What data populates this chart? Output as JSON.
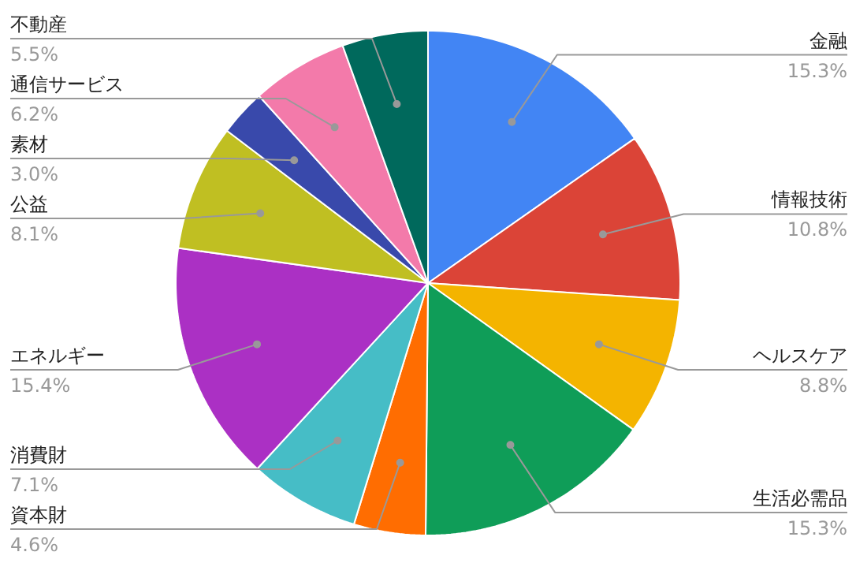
{
  "chart_data": {
    "type": "pie",
    "categories": [
      "金融",
      "情報技術",
      "ヘルスケア",
      "生活必需品",
      "資本財",
      "消費財",
      "エネルギー",
      "公益",
      "素材",
      "通信サービス",
      "不動産"
    ],
    "values": [
      15.3,
      10.8,
      8.8,
      15.3,
      4.6,
      7.1,
      15.4,
      8.1,
      3.0,
      6.2,
      5.5
    ],
    "value_labels": [
      "15.3%",
      "10.8%",
      "8.8%",
      "15.3%",
      "4.6%",
      "7.1%",
      "15.4%",
      "8.1%",
      "3.0%",
      "6.2%",
      "5.5%"
    ],
    "colors": [
      "#4285f4",
      "#db4437",
      "#f4b400",
      "#0f9d58",
      "#ff6d01",
      "#46bdc6",
      "#ab30c4",
      "#c0bf22",
      "#3949ab",
      "#f37aaa",
      "#00695c"
    ]
  }
}
